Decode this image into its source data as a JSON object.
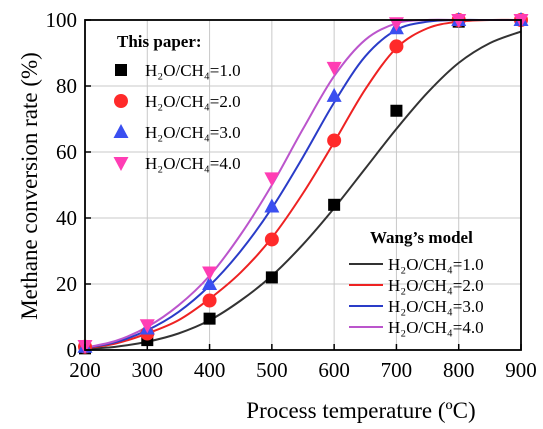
{
  "chart_data": {
    "type": "scatter",
    "title": "",
    "xlabel": "Process temperature (ºC)",
    "ylabel": "Methane conversion rate (%)",
    "xlim": [
      200,
      900
    ],
    "ylim": [
      0,
      100
    ],
    "xticks": [
      200,
      300,
      400,
      500,
      600,
      700,
      800,
      900
    ],
    "yticks": [
      0,
      20,
      40,
      60,
      80,
      100
    ],
    "grid": true,
    "scatter_legend": {
      "placement": "top-left",
      "heading": "This paper:"
    },
    "line_legend": {
      "placement": "bottom-right",
      "heading": "Wang’s model"
    },
    "scatter_series": [
      {
        "name": "H₂O/CH₄=1.0",
        "marker": "square",
        "color": "#000000",
        "x": [
          200,
          300,
          400,
          500,
          600,
          700,
          800,
          900
        ],
        "y": [
          0.5,
          3,
          9.5,
          22,
          44,
          72.5,
          99.5,
          100
        ]
      },
      {
        "name": "H₂O/CH₄=2.0",
        "marker": "circle",
        "color": "#ff2a2a",
        "x": [
          200,
          300,
          400,
          500,
          600,
          700,
          800,
          900
        ],
        "y": [
          1,
          5,
          15,
          33.5,
          63.5,
          92,
          100,
          100
        ]
      },
      {
        "name": "H₂O/CH₄=3.0",
        "marker": "triangle-up",
        "color": "#3a4ff0",
        "x": [
          200,
          300,
          400,
          500,
          600,
          700,
          800,
          900
        ],
        "y": [
          1,
          6.5,
          20,
          43.5,
          77,
          97.5,
          100,
          100
        ]
      },
      {
        "name": "H₂O/CH₄=4.0",
        "marker": "triangle-down",
        "color": "#ff3db4",
        "x": [
          200,
          300,
          400,
          500,
          600,
          700,
          800,
          900
        ],
        "y": [
          1.2,
          7.5,
          23.5,
          52,
          85.5,
          99,
          100,
          100
        ]
      }
    ],
    "line_series": [
      {
        "name": "H₂O/CH₄=1.0",
        "color": "#333333",
        "x": [
          200,
          250,
          300,
          350,
          400,
          450,
          500,
          550,
          600,
          650,
          700,
          750,
          800,
          850,
          900
        ],
        "y": [
          0.3,
          1,
          2.5,
          5,
          9,
          15,
          22.5,
          32,
          43,
          55,
          67,
          78,
          87,
          93,
          96.5
        ]
      },
      {
        "name": "H₂O/CH₄=2.0",
        "color": "#ee2222",
        "x": [
          200,
          250,
          300,
          350,
          400,
          450,
          500,
          550,
          600,
          650,
          700,
          750,
          800,
          850,
          900
        ],
        "y": [
          0.5,
          2,
          5,
          9,
          15.5,
          23.5,
          34,
          47.5,
          63,
          79,
          91.5,
          97.5,
          99.5,
          100,
          100
        ]
      },
      {
        "name": "H₂O/CH₄=3.0",
        "color": "#2a3cc8",
        "x": [
          200,
          250,
          300,
          350,
          400,
          450,
          500,
          550,
          600,
          650,
          700,
          750,
          800,
          850,
          900
        ],
        "y": [
          0.6,
          2.4,
          6,
          11.5,
          19.5,
          30,
          43,
          58.5,
          75,
          89,
          97,
          99.5,
          100,
          100,
          100
        ]
      },
      {
        "name": "H₂O/CH₄=4.0",
        "color": "#bb55cc",
        "x": [
          200,
          250,
          300,
          350,
          400,
          450,
          500,
          550,
          600,
          650,
          700,
          750,
          800,
          850,
          900
        ],
        "y": [
          0.7,
          2.8,
          7,
          13.5,
          22.5,
          35,
          50,
          67,
          83,
          94,
          99,
          100,
          100,
          100,
          100
        ]
      }
    ]
  }
}
